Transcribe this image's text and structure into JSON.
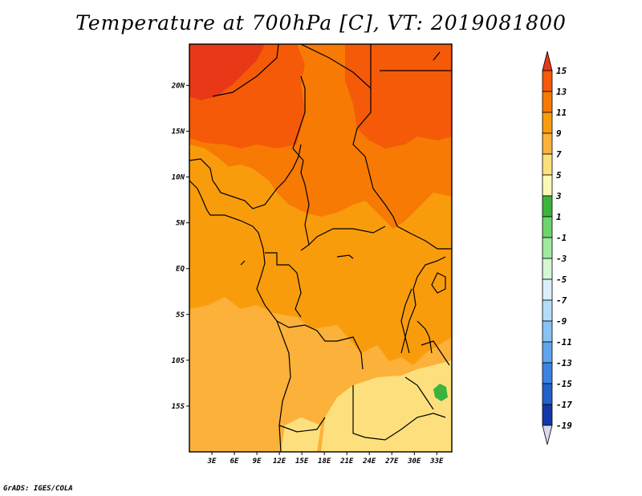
{
  "title": "Temperature at 700hPa [C], VT: 2019081800",
  "credit": "GrADS: IGES/COLA",
  "map": {
    "lat_ticks": [
      "20N",
      "15N",
      "10N",
      "5N",
      "EQ",
      "5S",
      "10S",
      "15S"
    ],
    "lon_ticks": [
      "3E",
      "6E",
      "9E",
      "12E",
      "15E",
      "18E",
      "21E",
      "24E",
      "27E",
      "30E",
      "33E"
    ],
    "lat_range": [
      -20,
      24.5
    ],
    "lon_range": [
      0,
      35
    ]
  },
  "colorbar": {
    "labels": [
      "15",
      "13",
      "11",
      "9",
      "7",
      "5",
      "3",
      "1",
      "-1",
      "-3",
      "-5",
      "-7",
      "-9",
      "-11",
      "-13",
      "-15",
      "-17",
      "-19"
    ],
    "colors": [
      "#e83818",
      "#f55a08",
      "#f77a05",
      "#f99c0c",
      "#fbb13a",
      "#fde07d",
      "#fcf9b6",
      "#3cb43c",
      "#6cd56c",
      "#a0eaa0",
      "#d4f7d4",
      "#dbeefb",
      "#b4dcf8",
      "#87c3f3",
      "#5ea5ec",
      "#3b84e2",
      "#2161cc",
      "#1238a8",
      "#0c1780",
      "#d8d8f0"
    ]
  },
  "colors": {
    "background": "#fbb13a",
    "warm_13": "#f55a08",
    "warm_11": "#f77a05",
    "warm_9": "#f99c0c",
    "warm_5": "#fde07d",
    "green": "#3cb43c",
    "border": "#000000"
  }
}
